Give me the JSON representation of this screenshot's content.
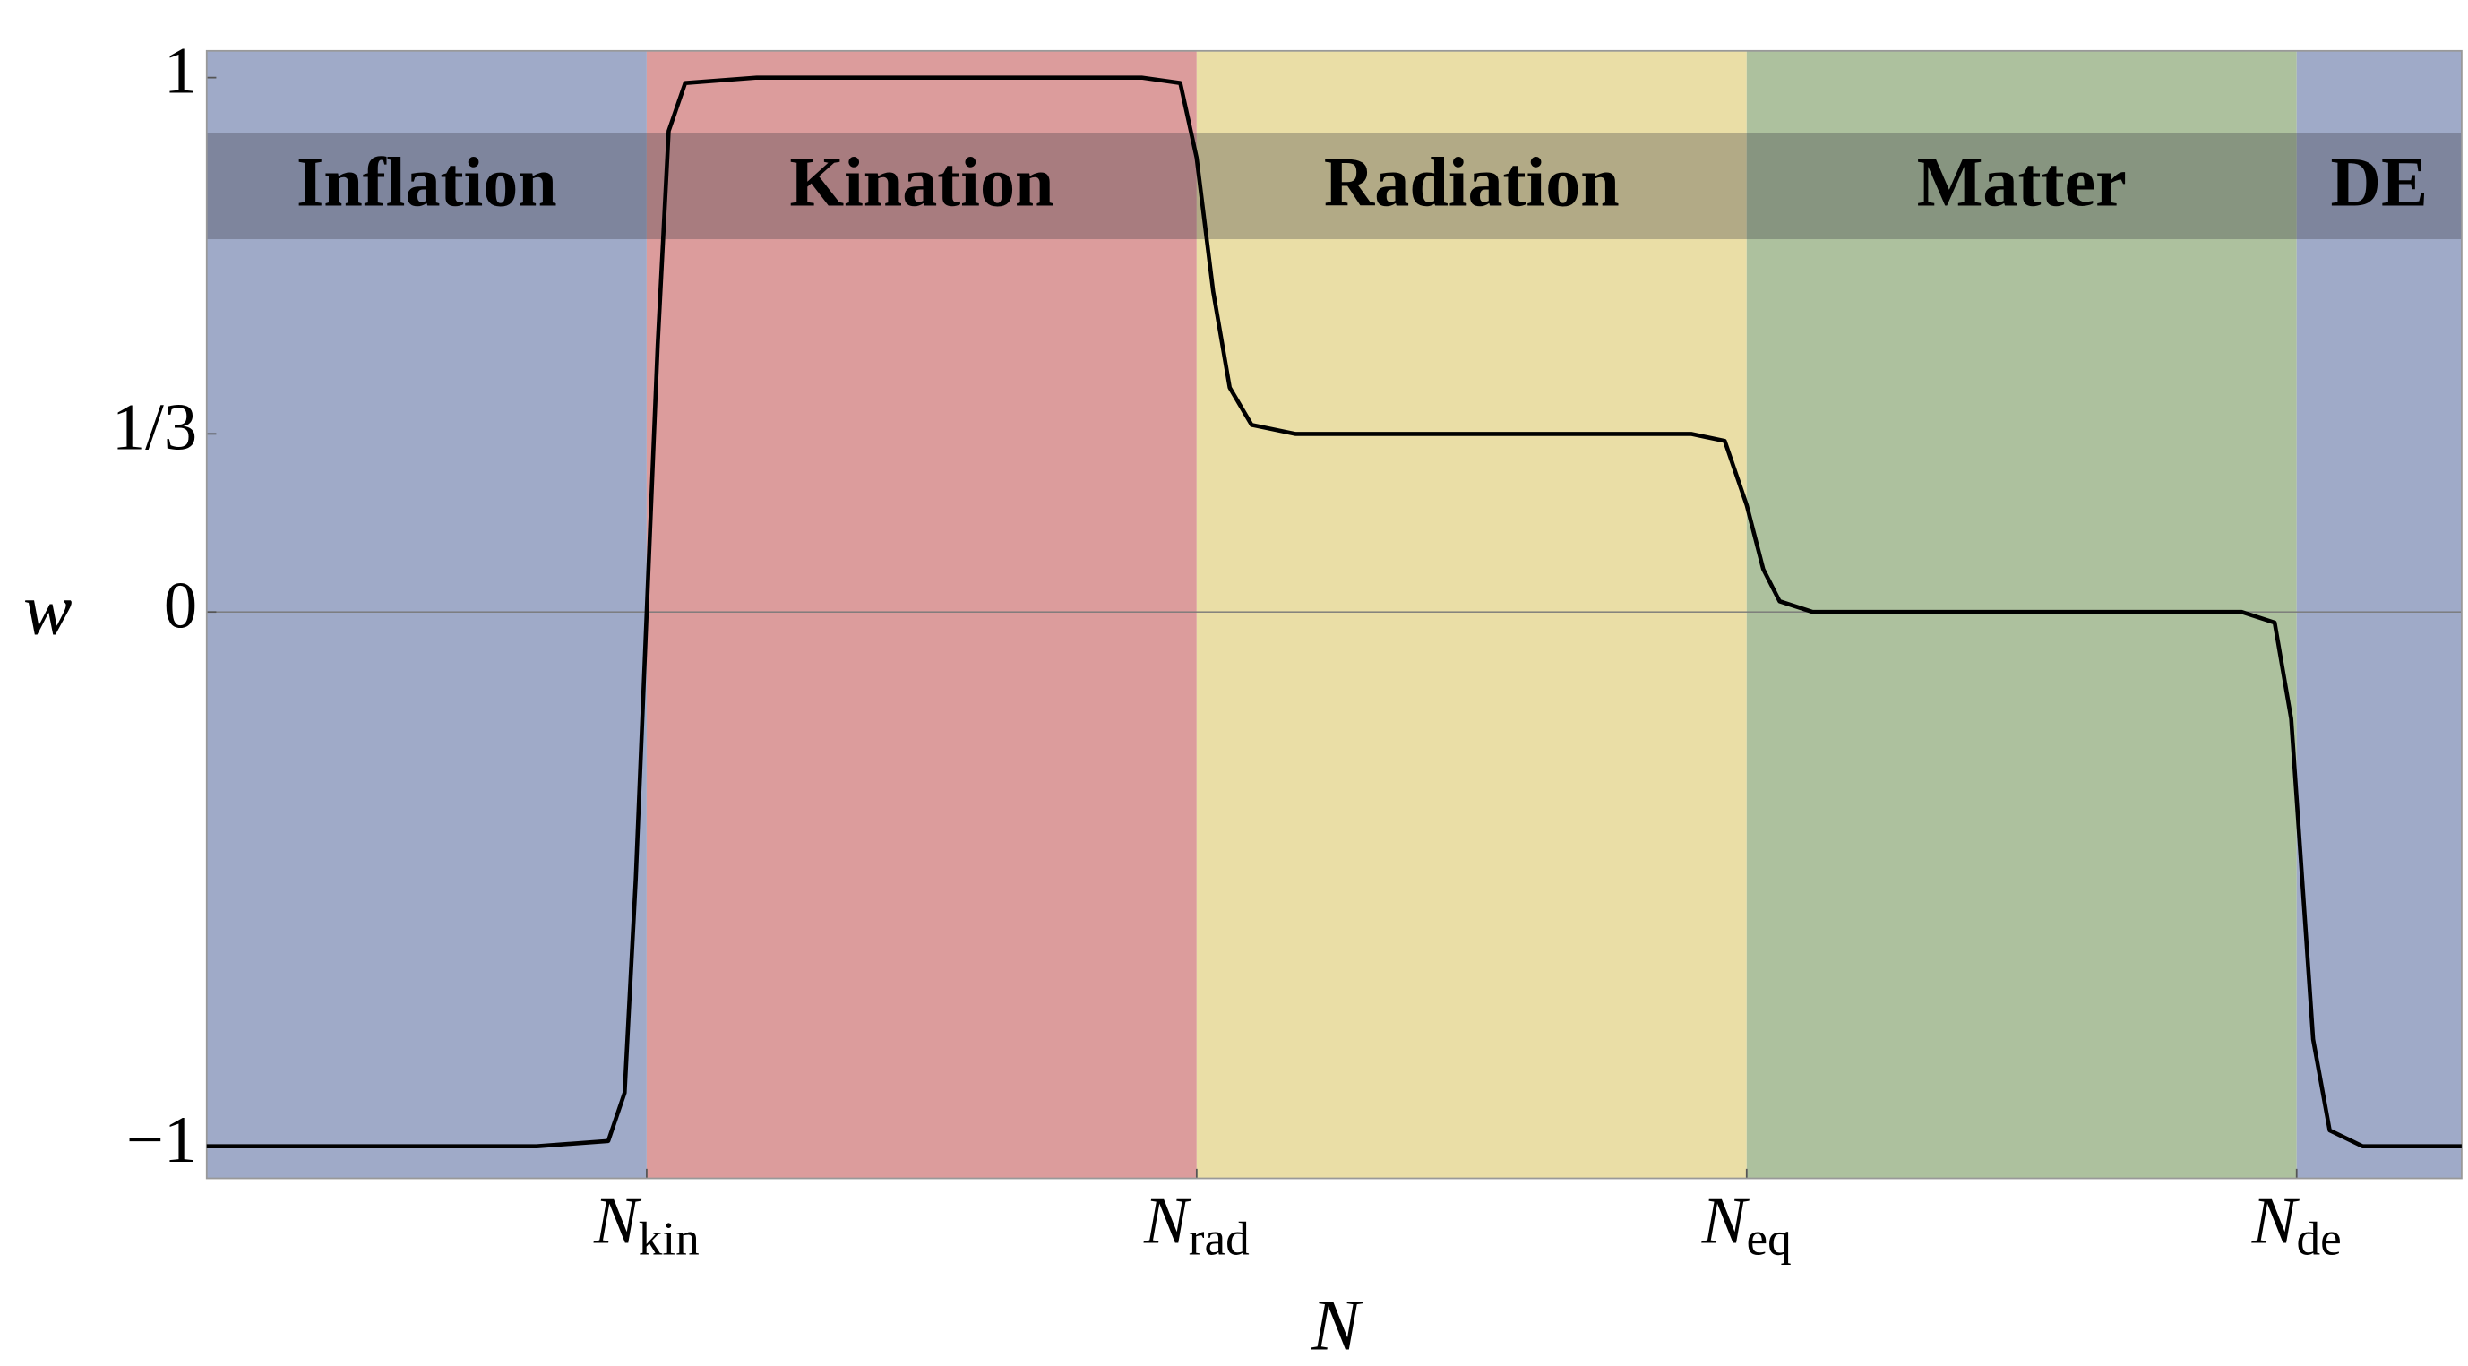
{
  "chart_data": {
    "type": "line",
    "xlabel": "N",
    "ylabel": "w",
    "xlim": [
      0.2,
      4.3
    ],
    "ylim": [
      -1.06,
      1.05
    ],
    "xticks": [
      {
        "value": 1,
        "label": "N",
        "subscript": "kin"
      },
      {
        "value": 2,
        "label": "N",
        "subscript": "rad"
      },
      {
        "value": 3,
        "label": "N",
        "subscript": "eq"
      },
      {
        "value": 4,
        "label": "N",
        "subscript": "de"
      }
    ],
    "yticks": [
      {
        "value": -1,
        "label": "−1"
      },
      0,
      {
        "value": 0.3333,
        "label": "1/3"
      },
      1
    ],
    "zero_line": true,
    "regions": [
      {
        "name": "Inflation",
        "start": 0.2,
        "end": 1,
        "color": "#9faac8"
      },
      {
        "name": "Kination",
        "start": 1,
        "end": 2,
        "color": "#dc9c9c"
      },
      {
        "name": "Radiation",
        "start": 2,
        "end": 3,
        "color": "#eadea6"
      },
      {
        "name": "Matter",
        "start": 3,
        "end": 4,
        "color": "#adc19e"
      },
      {
        "name": "DE",
        "start": 4,
        "end": 4.3,
        "color": "#9faac8"
      }
    ],
    "color": "#000000",
    "x": [
      0.2,
      0.8,
      0.93,
      0.96,
      0.98,
      1.0,
      1.02,
      1.04,
      1.07,
      1.2,
      1.9,
      1.97,
      2.0,
      2.03,
      2.06,
      2.1,
      2.18,
      2.9,
      2.96,
      3.0,
      3.03,
      3.06,
      3.12,
      3.9,
      3.96,
      3.99,
      4.01,
      4.03,
      4.06,
      4.12,
      4.3
    ],
    "values": [
      -1,
      -1,
      -0.99,
      -0.9,
      -0.5,
      0,
      0.5,
      0.9,
      0.99,
      1,
      1,
      0.99,
      0.85,
      0.6,
      0.42,
      0.35,
      0.333,
      0.333,
      0.32,
      0.2,
      0.08,
      0.02,
      0,
      0,
      -0.02,
      -0.2,
      -0.5,
      -0.8,
      -0.97,
      -1,
      -1
    ]
  }
}
